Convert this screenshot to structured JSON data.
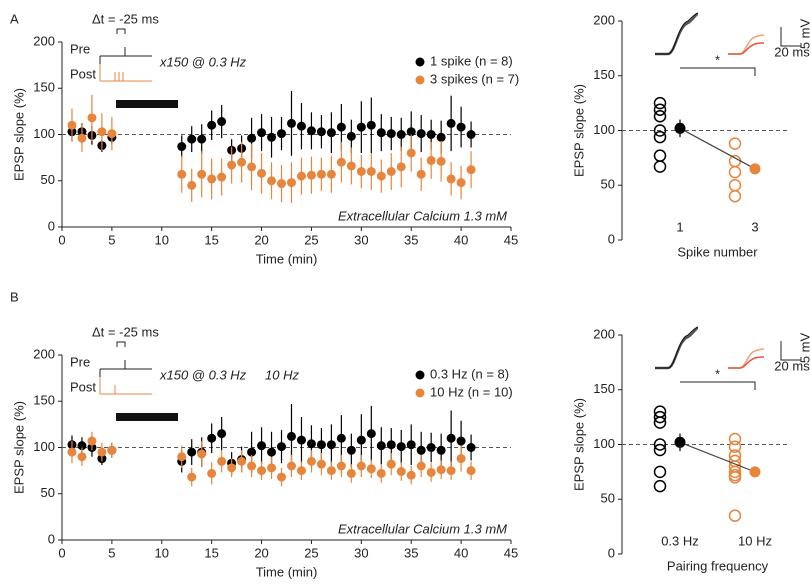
{
  "chart_data": [
    {
      "type": "timecourse",
      "panel_label": "A",
      "xlabel": "Time (min)",
      "ylabel": "EPSP slope (%)",
      "xlim": [
        0,
        45
      ],
      "xticks": [
        0,
        5,
        10,
        15,
        20,
        25,
        30,
        35,
        40,
        45
      ],
      "ylim": [
        0,
        200
      ],
      "yticks": [
        0,
        50,
        100,
        150,
        200
      ],
      "reference_line": 100,
      "annotations": {
        "delta_t": "Δt = -25 ms",
        "pre": "Pre",
        "post": "Post",
        "protocol": "x150 @ 0.3 Hz",
        "condition": "Extracellular Calcium 1.3 mM"
      },
      "x": [
        1,
        2,
        3,
        4,
        5,
        12,
        13,
        14,
        15,
        16,
        17,
        18,
        19,
        20,
        21,
        22,
        23,
        24,
        25,
        26,
        27,
        28,
        29,
        30,
        31,
        32,
        33,
        34,
        35,
        36,
        37,
        38,
        39,
        40,
        41
      ],
      "series": [
        {
          "name": "1 spike (n = 8)",
          "color": "#000000",
          "values": [
            103,
            103,
            99,
            88,
            97,
            87,
            95,
            95,
            110,
            114,
            83,
            85,
            96,
            102,
            97,
            101,
            112,
            109,
            104,
            103,
            102,
            108,
            98,
            108,
            110,
            102,
            101,
            100,
            103,
            101,
            100,
            97,
            112,
            108,
            100
          ],
          "errors": [
            10,
            9,
            10,
            7,
            8,
            12,
            14,
            16,
            16,
            18,
            12,
            14,
            22,
            20,
            22,
            18,
            35,
            25,
            20,
            18,
            22,
            25,
            18,
            28,
            30,
            20,
            18,
            18,
            22,
            20,
            16,
            18,
            30,
            22,
            14
          ]
        },
        {
          "name": "3 spikes (n = 7)",
          "color": "#e8853d",
          "values": [
            110,
            96,
            118,
            103,
            101,
            57,
            45,
            57,
            52,
            54,
            67,
            70,
            65,
            58,
            50,
            47,
            48,
            55,
            56,
            57,
            57,
            70,
            66,
            60,
            60,
            55,
            60,
            65,
            80,
            57,
            72,
            71,
            52,
            48,
            62
          ],
          "errors": [
            18,
            15,
            25,
            20,
            18,
            20,
            18,
            25,
            22,
            20,
            20,
            22,
            25,
            22,
            20,
            20,
            22,
            20,
            20,
            18,
            20,
            22,
            20,
            18,
            20,
            18,
            20,
            22,
            20,
            18,
            20,
            22,
            18,
            18,
            20
          ]
        }
      ]
    },
    {
      "type": "dot",
      "xlabel": "Spike number",
      "ylabel": "EPSP slope (%)",
      "ylim": [
        0,
        200
      ],
      "yticks": [
        0,
        50,
        100,
        150,
        200
      ],
      "reference_line": 100,
      "significance": "*",
      "scale_bar": {
        "voltage": "5 mV",
        "time": "20 ms"
      },
      "categories": [
        "1",
        "3"
      ],
      "colors": [
        "#000000",
        "#e8853d"
      ],
      "points": [
        [
          125,
          119,
          113,
          100,
          94,
          77,
          67
        ],
        [
          88,
          72,
          62,
          50,
          40
        ]
      ],
      "means": [
        102,
        65
      ],
      "errors": [
        8,
        5
      ]
    },
    {
      "type": "timecourse",
      "panel_label": "B",
      "xlabel": "Time (min)",
      "ylabel": "EPSP slope (%)",
      "xlim": [
        0,
        45
      ],
      "xticks": [
        0,
        5,
        10,
        15,
        20,
        25,
        30,
        35,
        40,
        45
      ],
      "ylim": [
        0,
        200
      ],
      "yticks": [
        0,
        50,
        100,
        150,
        200
      ],
      "reference_line": 100,
      "annotations": {
        "delta_t": "Δt = -25 ms",
        "pre": "Pre",
        "post": "Post",
        "protocol": "x150 @ 0.3 Hz",
        "protocol_extra": "10 Hz",
        "condition": "Extracellular Calcium 1.3 mM"
      },
      "x": [
        1,
        2,
        3,
        4,
        5,
        12,
        13,
        14,
        15,
        16,
        17,
        18,
        19,
        20,
        21,
        22,
        23,
        24,
        25,
        26,
        27,
        28,
        29,
        30,
        31,
        32,
        33,
        34,
        35,
        36,
        37,
        38,
        39,
        40,
        41
      ],
      "series": [
        {
          "name": "0.3 Hz (n = 8)",
          "color": "#000000",
          "values": [
            103,
            102,
            100,
            88,
            97,
            85,
            95,
            95,
            110,
            115,
            83,
            87,
            95,
            102,
            95,
            101,
            112,
            108,
            104,
            103,
            103,
            110,
            97,
            108,
            115,
            102,
            103,
            101,
            103,
            97,
            100,
            97,
            110,
            107,
            100
          ],
          "errors": [
            10,
            9,
            10,
            7,
            8,
            12,
            14,
            16,
            16,
            18,
            12,
            14,
            22,
            20,
            22,
            18,
            35,
            25,
            20,
            18,
            22,
            25,
            18,
            28,
            30,
            20,
            18,
            18,
            22,
            20,
            16,
            18,
            30,
            22,
            14
          ]
        },
        {
          "name": "10 Hz (n = 10)",
          "color": "#e8853d",
          "values": [
            95,
            90,
            107,
            95,
            97,
            90,
            68,
            93,
            72,
            85,
            78,
            85,
            80,
            75,
            78,
            68,
            80,
            75,
            85,
            82,
            75,
            80,
            72,
            80,
            77,
            72,
            82,
            74,
            70,
            80,
            73,
            76,
            75,
            88,
            75
          ],
          "errors": [
            12,
            10,
            10,
            10,
            8,
            12,
            10,
            14,
            12,
            12,
            10,
            12,
            12,
            10,
            12,
            10,
            12,
            10,
            12,
            12,
            10,
            12,
            10,
            12,
            10,
            10,
            12,
            10,
            10,
            12,
            10,
            10,
            10,
            14,
            10
          ]
        }
      ]
    },
    {
      "type": "dot",
      "xlabel": "Pairing frequency",
      "ylabel": "EPSP slope (%)",
      "ylim": [
        0,
        200
      ],
      "yticks": [
        0,
        50,
        100,
        150,
        200
      ],
      "reference_line": 100,
      "significance": "*",
      "scale_bar": {
        "voltage": "5 mV",
        "time": "20 ms"
      },
      "categories": [
        "0.3 Hz",
        "10 Hz"
      ],
      "colors": [
        "#000000",
        "#e8853d"
      ],
      "points": [
        [
          130,
          125,
          120,
          100,
          95,
          75,
          62
        ],
        [
          105,
          98,
          90,
          85,
          80,
          75,
          72,
          70,
          35
        ]
      ],
      "means": [
        102,
        75
      ],
      "errors": [
        8,
        5
      ]
    }
  ]
}
